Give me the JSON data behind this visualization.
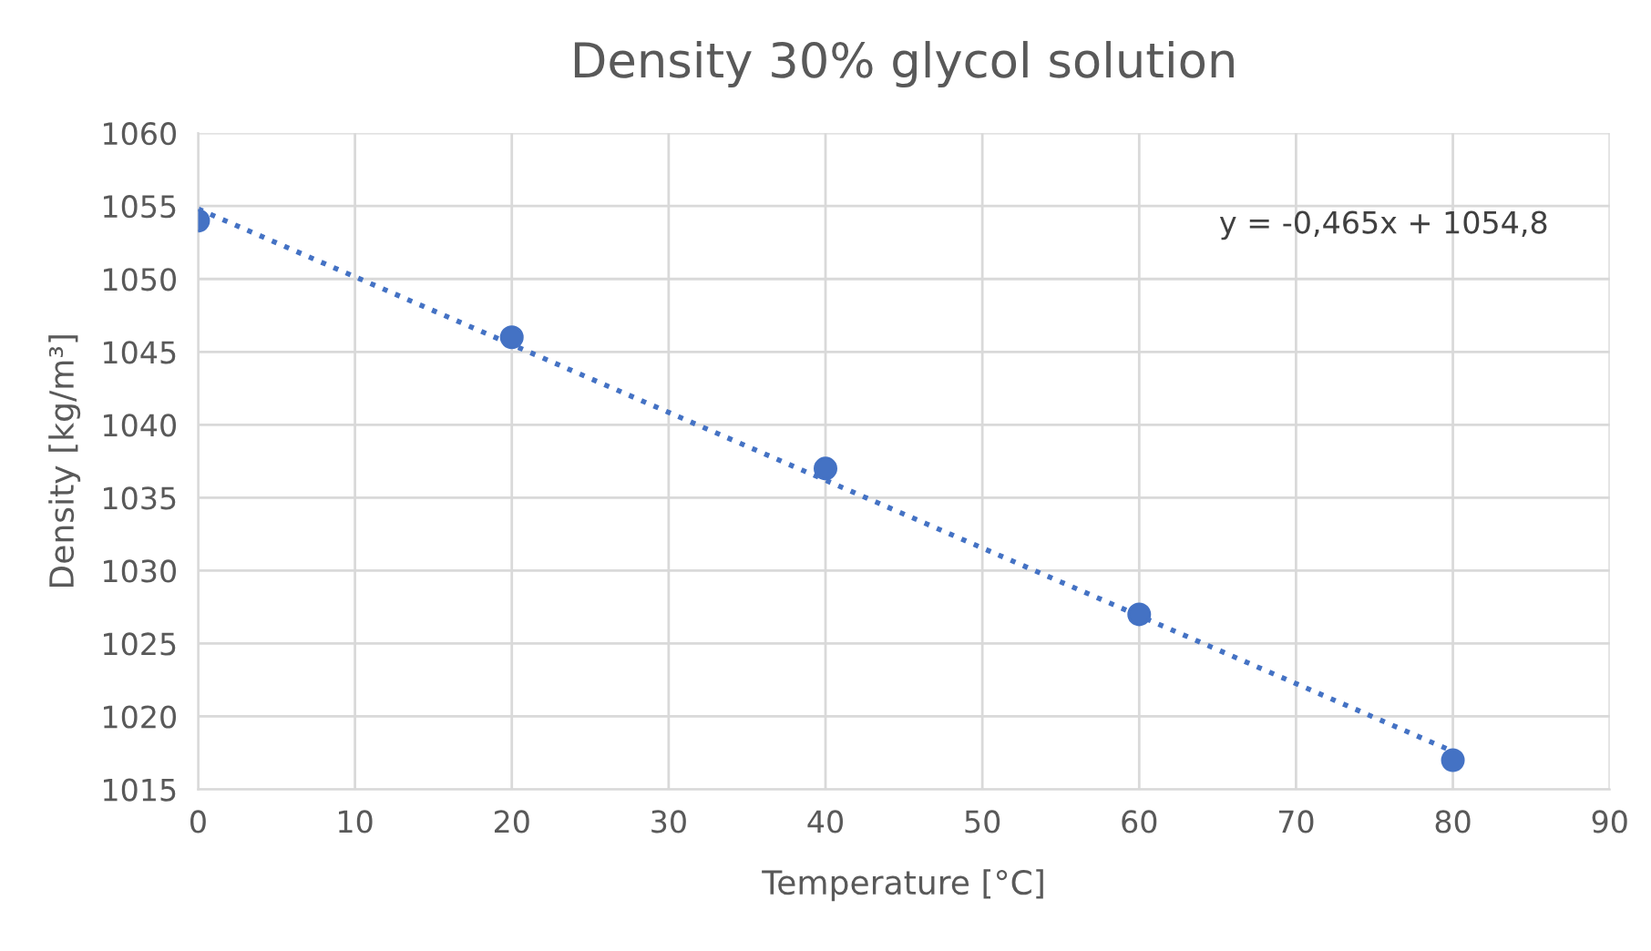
{
  "chart_data": {
    "type": "scatter",
    "title": "Density 30% glycol solution",
    "xlabel": "Temperature [°C]",
    "ylabel": "Density [kg/m³]",
    "x": [
      0,
      20,
      40,
      60,
      80
    ],
    "series": [
      {
        "color": "#4472c4",
        "marker": "circle",
        "values": [
          1054,
          1046,
          1037,
          1027,
          1017
        ]
      },
      {
        "type": "line",
        "color": "#4472c4",
        "line_style": "dotted",
        "marker": "none",
        "x": [
          0,
          80
        ],
        "values": [
          1054.8,
          1017.6
        ]
      }
    ],
    "annotations": [
      "y = -0,465x + 1054,8"
    ],
    "xlim": [
      0,
      90
    ],
    "xticks": [
      0,
      10,
      20,
      30,
      40,
      50,
      60,
      70,
      80,
      90
    ],
    "ylim": [
      1015,
      1060
    ],
    "yticks": [
      1015,
      1020,
      1025,
      1030,
      1035,
      1040,
      1045,
      1050,
      1055,
      1060
    ],
    "grid": true
  }
}
